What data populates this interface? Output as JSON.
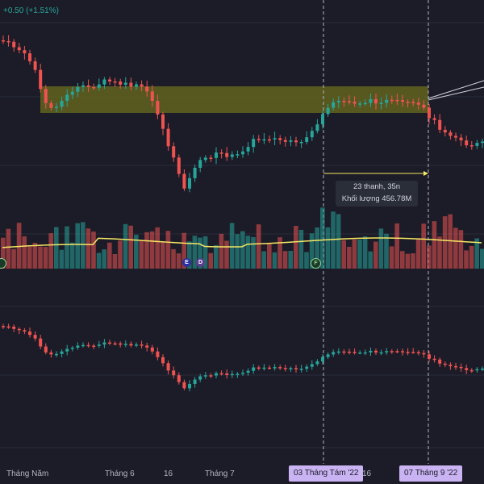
{
  "header": {
    "change_text": "+0.50 (+1.51%)"
  },
  "colors": {
    "up": "#26a69a",
    "down": "#ef5350",
    "ma": "#f5e663",
    "zone": "#7a7a1f",
    "highlight": "#c9b3f2"
  },
  "tooltip": {
    "line1": "23 thanh, 35n",
    "line2": "Khối lượng 456.78M"
  },
  "x_axis": {
    "labels": [
      "Tháng Năm",
      "Tháng 6",
      "16",
      "Tháng 7",
      "16"
    ],
    "highlight_labels": [
      "03 Tháng Tám '22",
      "07 Tháng 9 '22"
    ]
  },
  "events": [
    "E",
    "D",
    "F"
  ]
}
